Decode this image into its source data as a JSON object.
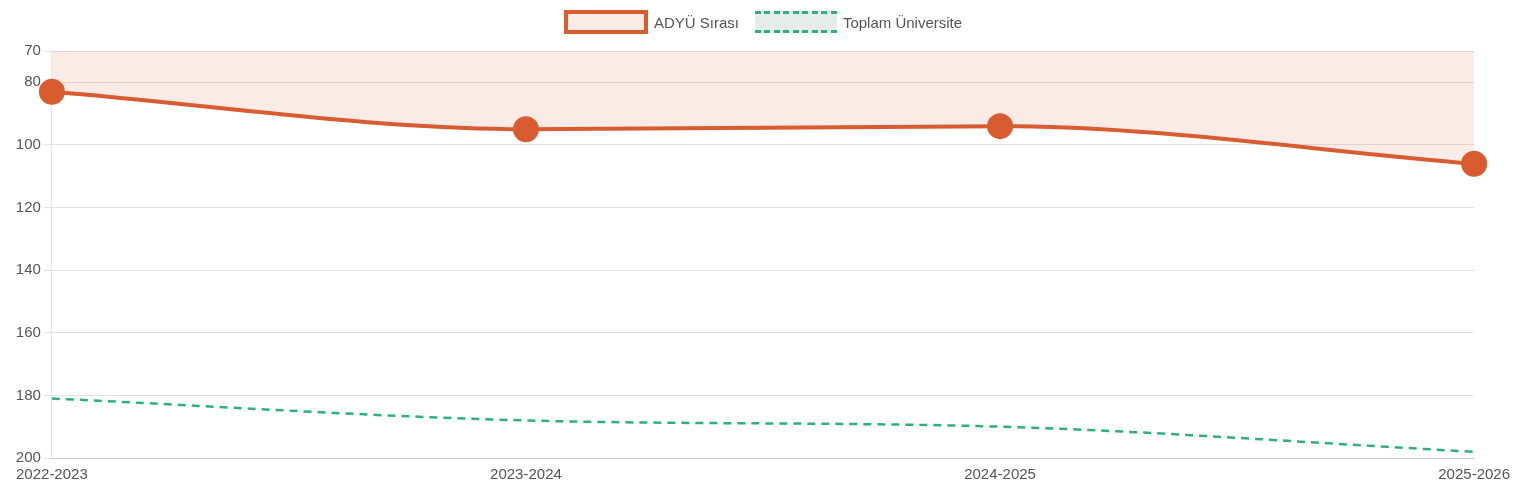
{
  "chart_data": {
    "type": "line",
    "categories": [
      "2022-2023",
      "2023-2024",
      "2024-2025",
      "2025-2026"
    ],
    "series": [
      {
        "name": "ADYÜ Sırası",
        "type": "area",
        "color": "#d95b30",
        "values": [
          83,
          95,
          94,
          106
        ],
        "marker": "circle",
        "line_style": "solid"
      },
      {
        "name": "Toplam Üniversite",
        "color": "#2bb07e",
        "values": [
          181,
          188,
          190,
          198
        ],
        "marker": "none",
        "line_style": "dashed"
      }
    ],
    "ylim": [
      200,
      70
    ],
    "yticks": [
      70,
      80,
      100,
      120,
      140,
      160,
      180,
      200
    ],
    "grid": "y",
    "legend": "top"
  }
}
